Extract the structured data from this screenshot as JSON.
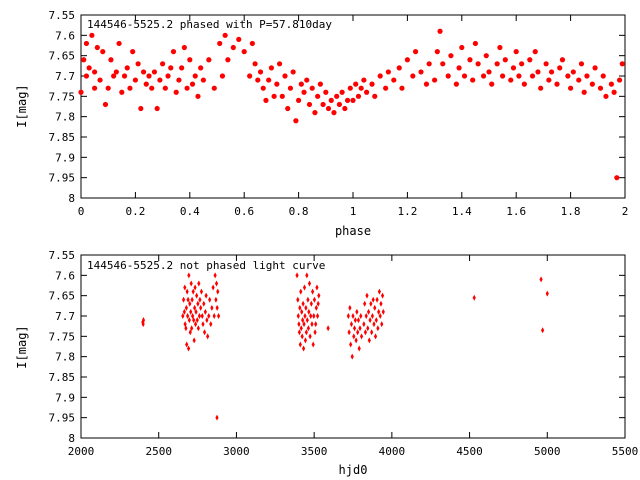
{
  "chart_data": [
    {
      "type": "scatter",
      "title": "144546-5525.2 phased with P=57.810day",
      "xlabel": "phase",
      "ylabel": "I[mag]",
      "xlim": [
        0,
        2
      ],
      "ylim": [
        7.55,
        8.0
      ],
      "y_inverted": true,
      "marker": "filled circle",
      "color": "#ff0000",
      "xticks": [
        "0",
        "0.2",
        "0.4",
        "0.6",
        "0.8",
        "1",
        "1.2",
        "1.4",
        "1.6",
        "1.8",
        "2"
      ],
      "yticks": [
        "7.55",
        "7.6",
        "7.65",
        "7.7",
        "7.75",
        "7.8",
        "7.85",
        "7.9",
        "7.95",
        "8"
      ],
      "points": [
        [
          0.0,
          7.74
        ],
        [
          0.01,
          7.66
        ],
        [
          0.02,
          7.62
        ],
        [
          0.02,
          7.7
        ],
        [
          0.03,
          7.68
        ],
        [
          0.04,
          7.6
        ],
        [
          0.05,
          7.73
        ],
        [
          0.05,
          7.69
        ],
        [
          0.06,
          7.63
        ],
        [
          0.07,
          7.71
        ],
        [
          0.08,
          7.64
        ],
        [
          0.09,
          7.77
        ],
        [
          0.1,
          7.73
        ],
        [
          0.11,
          7.66
        ],
        [
          0.12,
          7.7
        ],
        [
          0.13,
          7.69
        ],
        [
          0.14,
          7.62
        ],
        [
          0.15,
          7.74
        ],
        [
          0.16,
          7.7
        ],
        [
          0.17,
          7.68
        ],
        [
          0.18,
          7.73
        ],
        [
          0.19,
          7.64
        ],
        [
          0.2,
          7.71
        ],
        [
          0.21,
          7.67
        ],
        [
          0.22,
          7.78
        ],
        [
          0.23,
          7.69
        ],
        [
          0.24,
          7.72
        ],
        [
          0.25,
          7.7
        ],
        [
          0.26,
          7.73
        ],
        [
          0.27,
          7.69
        ],
        [
          0.28,
          7.78
        ],
        [
          0.29,
          7.71
        ],
        [
          0.3,
          7.67
        ],
        [
          0.31,
          7.73
        ],
        [
          0.32,
          7.7
        ],
        [
          0.33,
          7.68
        ],
        [
          0.34,
          7.64
        ],
        [
          0.35,
          7.74
        ],
        [
          0.36,
          7.71
        ],
        [
          0.37,
          7.68
        ],
        [
          0.38,
          7.63
        ],
        [
          0.39,
          7.73
        ],
        [
          0.4,
          7.66
        ],
        [
          0.41,
          7.72
        ],
        [
          0.42,
          7.7
        ],
        [
          0.43,
          7.75
        ],
        [
          0.44,
          7.68
        ],
        [
          0.45,
          7.71
        ],
        [
          0.47,
          7.66
        ],
        [
          0.49,
          7.73
        ],
        [
          0.51,
          7.62
        ],
        [
          0.52,
          7.7
        ],
        [
          0.53,
          7.6
        ],
        [
          0.54,
          7.66
        ],
        [
          0.56,
          7.63
        ],
        [
          0.58,
          7.61
        ],
        [
          0.6,
          7.64
        ],
        [
          0.62,
          7.7
        ],
        [
          0.63,
          7.62
        ],
        [
          0.64,
          7.67
        ],
        [
          0.65,
          7.71
        ],
        [
          0.66,
          7.69
        ],
        [
          0.67,
          7.73
        ],
        [
          0.68,
          7.76
        ],
        [
          0.69,
          7.71
        ],
        [
          0.7,
          7.68
        ],
        [
          0.71,
          7.75
        ],
        [
          0.72,
          7.72
        ],
        [
          0.73,
          7.67
        ],
        [
          0.74,
          7.75
        ],
        [
          0.75,
          7.7
        ],
        [
          0.76,
          7.78
        ],
        [
          0.77,
          7.73
        ],
        [
          0.78,
          7.69
        ],
        [
          0.79,
          7.81
        ],
        [
          0.8,
          7.76
        ],
        [
          0.81,
          7.72
        ],
        [
          0.82,
          7.74
        ],
        [
          0.83,
          7.71
        ],
        [
          0.84,
          7.77
        ],
        [
          0.85,
          7.73
        ],
        [
          0.86,
          7.79
        ],
        [
          0.87,
          7.75
        ],
        [
          0.88,
          7.72
        ],
        [
          0.89,
          7.77
        ],
        [
          0.9,
          7.74
        ],
        [
          0.91,
          7.78
        ],
        [
          0.92,
          7.76
        ],
        [
          0.93,
          7.79
        ],
        [
          0.94,
          7.75
        ],
        [
          0.95,
          7.77
        ],
        [
          0.96,
          7.74
        ],
        [
          0.97,
          7.78
        ],
        [
          0.98,
          7.76
        ],
        [
          0.99,
          7.73
        ],
        [
          1.0,
          7.76
        ],
        [
          1.01,
          7.72
        ],
        [
          1.02,
          7.75
        ],
        [
          1.03,
          7.73
        ],
        [
          1.04,
          7.71
        ],
        [
          1.05,
          7.74
        ],
        [
          1.07,
          7.72
        ],
        [
          1.08,
          7.75
        ],
        [
          1.1,
          7.7
        ],
        [
          1.12,
          7.73
        ],
        [
          1.13,
          7.69
        ],
        [
          1.15,
          7.71
        ],
        [
          1.17,
          7.68
        ],
        [
          1.18,
          7.73
        ],
        [
          1.2,
          7.66
        ],
        [
          1.22,
          7.7
        ],
        [
          1.23,
          7.64
        ],
        [
          1.25,
          7.69
        ],
        [
          1.27,
          7.72
        ],
        [
          1.28,
          7.67
        ],
        [
          1.3,
          7.71
        ],
        [
          1.31,
          7.64
        ],
        [
          1.32,
          7.59
        ],
        [
          1.33,
          7.67
        ],
        [
          1.35,
          7.7
        ],
        [
          1.36,
          7.65
        ],
        [
          1.38,
          7.72
        ],
        [
          1.39,
          7.68
        ],
        [
          1.4,
          7.63
        ],
        [
          1.41,
          7.7
        ],
        [
          1.43,
          7.66
        ],
        [
          1.44,
          7.71
        ],
        [
          1.45,
          7.62
        ],
        [
          1.46,
          7.67
        ],
        [
          1.48,
          7.7
        ],
        [
          1.49,
          7.65
        ],
        [
          1.5,
          7.69
        ],
        [
          1.51,
          7.72
        ],
        [
          1.53,
          7.67
        ],
        [
          1.54,
          7.63
        ],
        [
          1.55,
          7.7
        ],
        [
          1.56,
          7.66
        ],
        [
          1.58,
          7.71
        ],
        [
          1.59,
          7.68
        ],
        [
          1.6,
          7.64
        ],
        [
          1.61,
          7.7
        ],
        [
          1.62,
          7.67
        ],
        [
          1.63,
          7.72
        ],
        [
          1.65,
          7.66
        ],
        [
          1.66,
          7.7
        ],
        [
          1.67,
          7.64
        ],
        [
          1.68,
          7.69
        ],
        [
          1.69,
          7.73
        ],
        [
          1.71,
          7.67
        ],
        [
          1.72,
          7.71
        ],
        [
          1.73,
          7.69
        ],
        [
          1.75,
          7.72
        ],
        [
          1.76,
          7.68
        ],
        [
          1.77,
          7.66
        ],
        [
          1.79,
          7.7
        ],
        [
          1.8,
          7.73
        ],
        [
          1.81,
          7.69
        ],
        [
          1.83,
          7.71
        ],
        [
          1.84,
          7.67
        ],
        [
          1.85,
          7.74
        ],
        [
          1.86,
          7.7
        ],
        [
          1.88,
          7.72
        ],
        [
          1.89,
          7.68
        ],
        [
          1.91,
          7.73
        ],
        [
          1.92,
          7.7
        ],
        [
          1.93,
          7.75
        ],
        [
          1.95,
          7.72
        ],
        [
          1.96,
          7.74
        ],
        [
          1.97,
          7.95
        ],
        [
          1.98,
          7.71
        ],
        [
          1.99,
          7.67
        ]
      ]
    },
    {
      "type": "scatter",
      "title": "144546-5525.2 not phased light curve",
      "xlabel": "hjd0",
      "ylabel": "I[mag]",
      "xlim": [
        2000,
        5500
      ],
      "ylim": [
        7.55,
        8.0
      ],
      "y_inverted": true,
      "marker": "small diamond",
      "color": "#ff0000",
      "xticks": [
        "2000",
        "2500",
        "3000",
        "3500",
        "4000",
        "4500",
        "5000",
        "5500"
      ],
      "yticks": [
        "7.55",
        "7.6",
        "7.65",
        "7.7",
        "7.75",
        "7.8",
        "7.85",
        "7.9",
        "7.95",
        "8"
      ],
      "points": [
        [
          2398,
          7.715
        ],
        [
          2400,
          7.72
        ],
        [
          2402,
          7.71
        ],
        [
          2655,
          7.7
        ],
        [
          2660,
          7.66
        ],
        [
          2665,
          7.69
        ],
        [
          2668,
          7.63
        ],
        [
          2670,
          7.72
        ],
        [
          2675,
          7.73
        ],
        [
          2678,
          7.68
        ],
        [
          2680,
          7.77
        ],
        [
          2683,
          7.64
        ],
        [
          2686,
          7.7
        ],
        [
          2689,
          7.66
        ],
        [
          2692,
          7.78
        ],
        [
          2694,
          7.6
        ],
        [
          2697,
          7.71
        ],
        [
          2700,
          7.67
        ],
        [
          2703,
          7.74
        ],
        [
          2706,
          7.69
        ],
        [
          2709,
          7.62
        ],
        [
          2712,
          7.73
        ],
        [
          2715,
          7.66
        ],
        [
          2718,
          7.7
        ],
        [
          2722,
          7.64
        ],
        [
          2725,
          7.71
        ],
        [
          2728,
          7.76
        ],
        [
          2731,
          7.68
        ],
        [
          2734,
          7.63
        ],
        [
          2737,
          7.72
        ],
        [
          2740,
          7.69
        ],
        [
          2744,
          7.65
        ],
        [
          2748,
          7.71
        ],
        [
          2752,
          7.67
        ],
        [
          2755,
          7.73
        ],
        [
          2758,
          7.62
        ],
        [
          2762,
          7.7
        ],
        [
          2765,
          7.66
        ],
        [
          2770,
          7.68
        ],
        [
          2775,
          7.64
        ],
        [
          2780,
          7.7
        ],
        [
          2785,
          7.72
        ],
        [
          2790,
          7.67
        ],
        [
          2795,
          7.74
        ],
        [
          2800,
          7.69
        ],
        [
          2805,
          7.65
        ],
        [
          2810,
          7.71
        ],
        [
          2815,
          7.75
        ],
        [
          2822,
          7.7
        ],
        [
          2828,
          7.66
        ],
        [
          2835,
          7.72
        ],
        [
          2842,
          7.68
        ],
        [
          2850,
          7.63
        ],
        [
          2857,
          7.7
        ],
        [
          2863,
          7.6
        ],
        [
          2868,
          7.66
        ],
        [
          2872,
          7.62
        ],
        [
          2876,
          7.68
        ],
        [
          2880,
          7.64
        ],
        [
          2885,
          7.7
        ],
        [
          2875,
          7.95
        ],
        [
          3390,
          7.6
        ],
        [
          3395,
          7.66
        ],
        [
          3398,
          7.7
        ],
        [
          3402,
          7.72
        ],
        [
          3405,
          7.74
        ],
        [
          3408,
          7.68
        ],
        [
          3411,
          7.77
        ],
        [
          3414,
          7.64
        ],
        [
          3417,
          7.73
        ],
        [
          3420,
          7.69
        ],
        [
          3423,
          7.75
        ],
        [
          3426,
          7.71
        ],
        [
          3429,
          7.67
        ],
        [
          3432,
          7.78
        ],
        [
          3435,
          7.72
        ],
        [
          3438,
          7.63
        ],
        [
          3441,
          7.7
        ],
        [
          3444,
          7.76
        ],
        [
          3447,
          7.68
        ],
        [
          3450,
          7.74
        ],
        [
          3453,
          7.6
        ],
        [
          3456,
          7.71
        ],
        [
          3460,
          7.66
        ],
        [
          3463,
          7.73
        ],
        [
          3466,
          7.69
        ],
        [
          3470,
          7.62
        ],
        [
          3474,
          7.75
        ],
        [
          3478,
          7.7
        ],
        [
          3482,
          7.67
        ],
        [
          3486,
          7.72
        ],
        [
          3490,
          7.64
        ],
        [
          3494,
          7.77
        ],
        [
          3498,
          7.7
        ],
        [
          3502,
          7.66
        ],
        [
          3506,
          7.74
        ],
        [
          3510,
          7.72
        ],
        [
          3514,
          7.68
        ],
        [
          3518,
          7.63
        ],
        [
          3522,
          7.7
        ],
        [
          3526,
          7.67
        ],
        [
          3530,
          7.65
        ],
        [
          3590,
          7.73
        ],
        [
          3720,
          7.7
        ],
        [
          3725,
          7.74
        ],
        [
          3730,
          7.68
        ],
        [
          3735,
          7.77
        ],
        [
          3740,
          7.72
        ],
        [
          3745,
          7.8
        ],
        [
          3750,
          7.7
        ],
        [
          3755,
          7.75
        ],
        [
          3760,
          7.73
        ],
        [
          3765,
          7.71
        ],
        [
          3770,
          7.76
        ],
        [
          3775,
          7.69
        ],
        [
          3780,
          7.74
        ],
        [
          3785,
          7.71
        ],
        [
          3790,
          7.78
        ],
        [
          3795,
          7.73
        ],
        [
          3800,
          7.7
        ],
        [
          3805,
          7.75
        ],
        [
          3820,
          7.72
        ],
        [
          3825,
          7.67
        ],
        [
          3830,
          7.74
        ],
        [
          3835,
          7.7
        ],
        [
          3840,
          7.65
        ],
        [
          3845,
          7.73
        ],
        [
          3850,
          7.69
        ],
        [
          3855,
          7.76
        ],
        [
          3860,
          7.71
        ],
        [
          3865,
          7.67
        ],
        [
          3870,
          7.74
        ],
        [
          3875,
          7.7
        ],
        [
          3880,
          7.66
        ],
        [
          3885,
          7.72
        ],
        [
          3890,
          7.68
        ],
        [
          3895,
          7.75
        ],
        [
          3900,
          7.71
        ],
        [
          3905,
          7.66
        ],
        [
          3910,
          7.73
        ],
        [
          3915,
          7.69
        ],
        [
          3920,
          7.64
        ],
        [
          3925,
          7.7
        ],
        [
          3930,
          7.67
        ],
        [
          3935,
          7.72
        ],
        [
          3940,
          7.65
        ],
        [
          3945,
          7.69
        ],
        [
          4530,
          7.655
        ],
        [
          4960,
          7.61
        ],
        [
          4970,
          7.735
        ],
        [
          5000,
          7.645
        ]
      ]
    }
  ]
}
